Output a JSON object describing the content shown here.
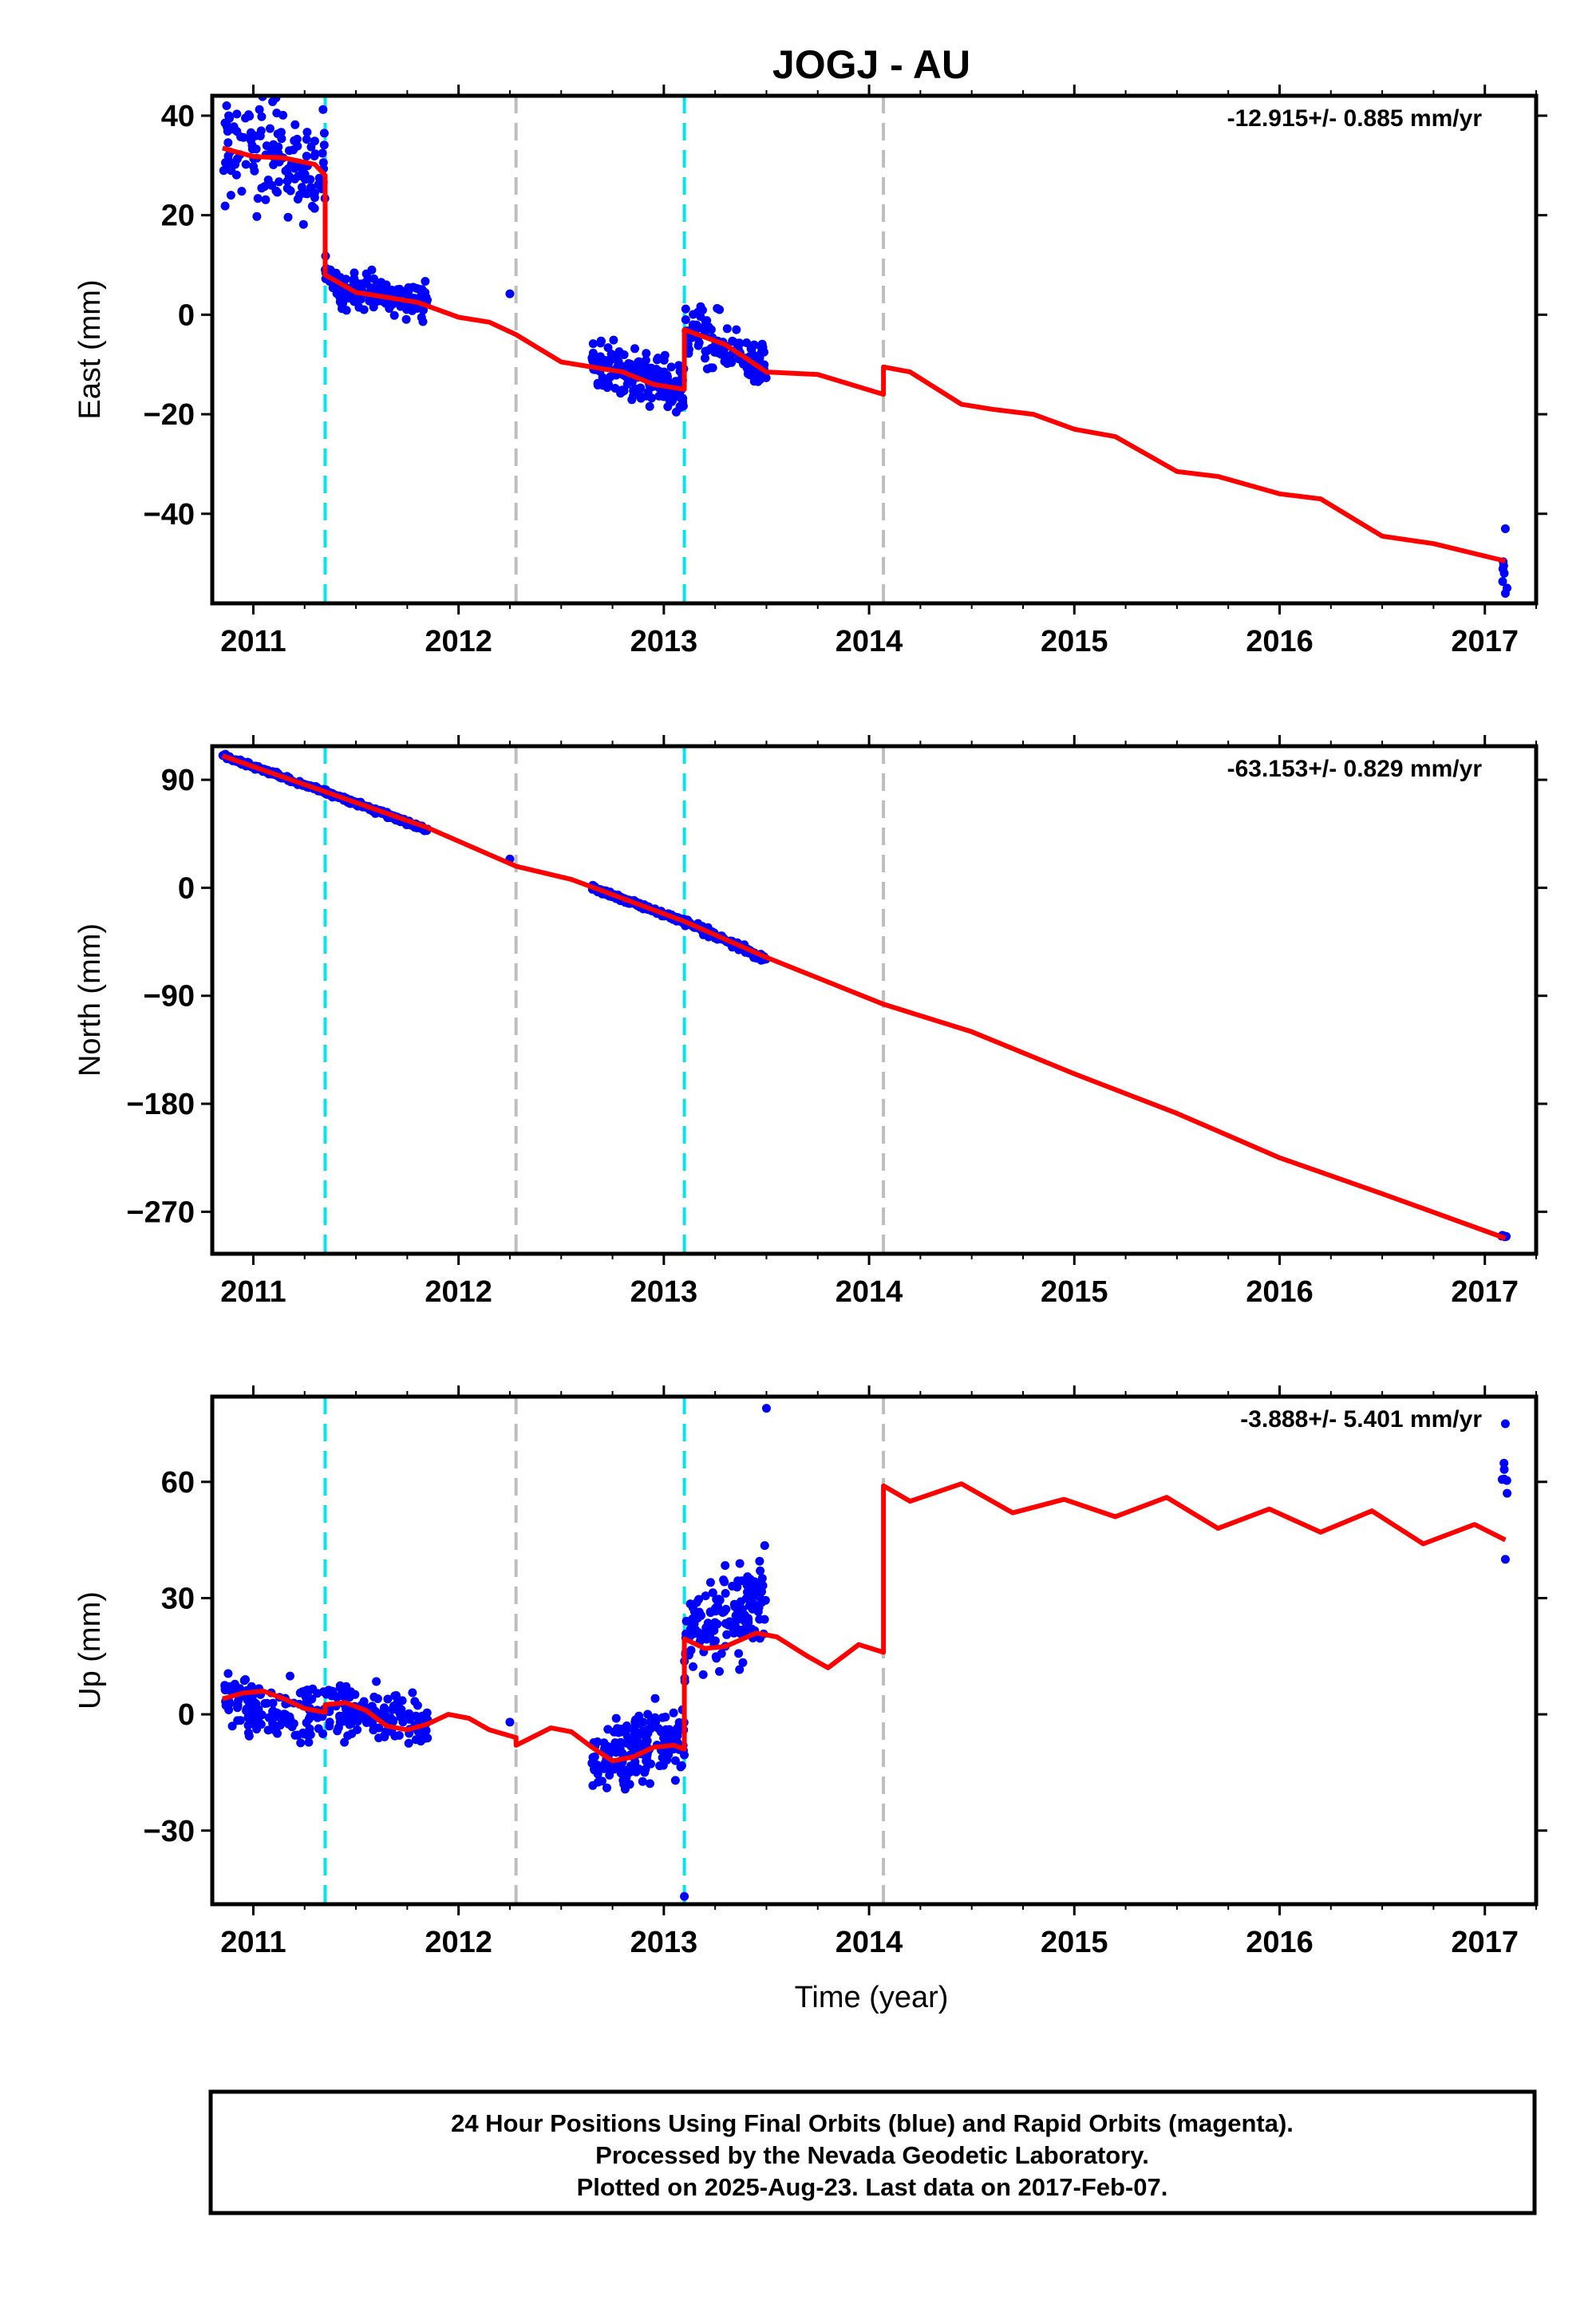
{
  "title": "JOGJ - AU",
  "x_axis_label": "Time (year)",
  "footer": {
    "line1": "24 Hour Positions Using Final Orbits (blue) and Rapid Orbits (magenta).",
    "line2": "Processed by the Nevada Geodetic Laboratory.",
    "line3": "Plotted on 2025-Aug-23. Last data on 2017-Feb-07."
  },
  "colors": {
    "data": "#0000ff",
    "model": "#ff0000",
    "equipment_change": "#00e5ee",
    "other_event": "#bebebe",
    "frame": "#000000"
  },
  "chart_data": [
    {
      "type": "scatter",
      "name": "east",
      "ylabel": "East (mm)",
      "rate_label": "-12.915+/- 0.885 mm/yr",
      "xlim": [
        2010.8,
        2017.25
      ],
      "ylim": [
        -58,
        44
      ],
      "yticks": [
        40,
        20,
        0,
        -20,
        -40
      ],
      "ytick_labels": [
        "40",
        "20",
        "0",
        "−20",
        "−40"
      ],
      "xticks": [
        2011,
        2012,
        2013,
        2014,
        2015,
        2016,
        2017
      ],
      "xtick_labels": [
        "2011",
        "2012",
        "2013",
        "2014",
        "2015",
        "2016",
        "2017"
      ],
      "cyan_lines": [
        2011.35,
        2013.1
      ],
      "gray_lines": [
        2012.28,
        2014.07
      ],
      "data_clusters": [
        {
          "x0": 2010.85,
          "x1": 2010.9,
          "y0": 30,
          "y1": 35,
          "yN": 34,
          "n": 16
        },
        {
          "x0": 2010.9,
          "x1": 2011.35,
          "y0": 33,
          "y1": 29,
          "yN": 30,
          "n": 120
        },
        {
          "x0": 2011.35,
          "x1": 2011.43,
          "y0": 10,
          "y1": 5,
          "yN": 7,
          "n": 30
        },
        {
          "x0": 2011.43,
          "x1": 2011.85,
          "y0": 5,
          "y1": 3,
          "yN": 10,
          "n": 150
        },
        {
          "x0": 2012.65,
          "x1": 2013.1,
          "y0": -10,
          "y1": -15,
          "yN": 14,
          "n": 200
        },
        {
          "x0": 2013.1,
          "x1": 2013.5,
          "y0": -3,
          "y1": -10,
          "yN": 16,
          "n": 120
        },
        {
          "x0": 2017.08,
          "x1": 2017.11,
          "y0": -50,
          "y1": -52,
          "yN": 10,
          "n": 6
        }
      ],
      "data_points": [
        {
          "x": 2010.87,
          "y": 42
        },
        {
          "x": 2010.88,
          "y": 40
        },
        {
          "x": 2012.25,
          "y": 4.2
        },
        {
          "x": 2017.1,
          "y": -43
        },
        {
          "x": 2017.1,
          "y": -56
        }
      ],
      "model_line": [
        {
          "x": 2010.85,
          "y": 33.5
        },
        {
          "x": 2011.0,
          "y": 31.8
        },
        {
          "x": 2011.15,
          "y": 31.5
        },
        {
          "x": 2011.3,
          "y": 30.2
        },
        {
          "x": 2011.35,
          "y": 28
        },
        {
          "x": 2011.35,
          "y": 8
        },
        {
          "x": 2011.5,
          "y": 4.5
        },
        {
          "x": 2011.65,
          "y": 3.5
        },
        {
          "x": 2011.8,
          "y": 2.5
        },
        {
          "x": 2012.0,
          "y": -0.5
        },
        {
          "x": 2012.15,
          "y": -1.5
        },
        {
          "x": 2012.28,
          "y": -4
        },
        {
          "x": 2012.5,
          "y": -9.5
        },
        {
          "x": 2012.8,
          "y": -11.5
        },
        {
          "x": 2012.95,
          "y": -14
        },
        {
          "x": 2013.1,
          "y": -15
        },
        {
          "x": 2013.1,
          "y": -3
        },
        {
          "x": 2013.3,
          "y": -6
        },
        {
          "x": 2013.5,
          "y": -11.5
        },
        {
          "x": 2013.75,
          "y": -12
        },
        {
          "x": 2014.07,
          "y": -16
        },
        {
          "x": 2014.07,
          "y": -10.5
        },
        {
          "x": 2014.2,
          "y": -11.5
        },
        {
          "x": 2014.45,
          "y": -18
        },
        {
          "x": 2014.6,
          "y": -19
        },
        {
          "x": 2014.8,
          "y": -20
        },
        {
          "x": 2015.0,
          "y": -23
        },
        {
          "x": 2015.2,
          "y": -24.5
        },
        {
          "x": 2015.5,
          "y": -31.5
        },
        {
          "x": 2015.7,
          "y": -32.5
        },
        {
          "x": 2016.0,
          "y": -36
        },
        {
          "x": 2016.2,
          "y": -37
        },
        {
          "x": 2016.5,
          "y": -44.5
        },
        {
          "x": 2016.75,
          "y": -46
        },
        {
          "x": 2017.1,
          "y": -49.5
        }
      ]
    },
    {
      "type": "scatter",
      "name": "north",
      "ylabel": "North (mm)",
      "rate_label": "-63.153+/- 0.829 mm/yr",
      "xlim": [
        2010.8,
        2017.25
      ],
      "ylim": [
        -305,
        118
      ],
      "yticks": [
        90,
        0,
        -90,
        -180,
        -270
      ],
      "ytick_labels": [
        "90",
        "0",
        "−90",
        "−180",
        "−270"
      ],
      "xticks": [
        2011,
        2012,
        2013,
        2014,
        2015,
        2016,
        2017
      ],
      "xtick_labels": [
        "2011",
        "2012",
        "2013",
        "2014",
        "2015",
        "2016",
        "2017"
      ],
      "cyan_lines": [
        2011.35,
        2013.1
      ],
      "gray_lines": [
        2012.28,
        2014.07
      ],
      "data_clusters": [
        {
          "x0": 2010.85,
          "x1": 2011.35,
          "y0": 110,
          "y1": 80,
          "yN": 5,
          "n": 140
        },
        {
          "x0": 2011.35,
          "x1": 2011.85,
          "y0": 80,
          "y1": 48,
          "yN": 6,
          "n": 160
        },
        {
          "x0": 2012.65,
          "x1": 2013.1,
          "y0": 0,
          "y1": -28,
          "yN": 6,
          "n": 200
        },
        {
          "x0": 2013.1,
          "x1": 2013.5,
          "y0": -28,
          "y1": -60,
          "yN": 8,
          "n": 140
        },
        {
          "x0": 2017.08,
          "x1": 2017.11,
          "y0": -290,
          "y1": -291,
          "yN": 4,
          "n": 5
        }
      ],
      "data_points": [
        {
          "x": 2012.25,
          "y": 24
        }
      ],
      "model_line": [
        {
          "x": 2010.85,
          "y": 110
        },
        {
          "x": 2011.35,
          "y": 80
        },
        {
          "x": 2011.85,
          "y": 50
        },
        {
          "x": 2012.28,
          "y": 18
        },
        {
          "x": 2012.55,
          "y": 7
        },
        {
          "x": 2013.1,
          "y": -28
        },
        {
          "x": 2013.5,
          "y": -58
        },
        {
          "x": 2014.07,
          "y": -97
        },
        {
          "x": 2014.5,
          "y": -120
        },
        {
          "x": 2015.0,
          "y": -155
        },
        {
          "x": 2015.5,
          "y": -188
        },
        {
          "x": 2016.0,
          "y": -225
        },
        {
          "x": 2016.5,
          "y": -255
        },
        {
          "x": 2017.1,
          "y": -292
        }
      ]
    },
    {
      "type": "scatter",
      "name": "up",
      "ylabel": "Up (mm)",
      "rate_label": "-3.888+/- 5.401 mm/yr",
      "xlim": [
        2010.8,
        2017.25
      ],
      "ylim": [
        -49,
        82
      ],
      "yticks": [
        60,
        30,
        0,
        -30
      ],
      "ytick_labels": [
        "60",
        "30",
        "0",
        "−30"
      ],
      "xticks": [
        2011,
        2012,
        2013,
        2014,
        2015,
        2016,
        2017
      ],
      "xtick_labels": [
        "2011",
        "2012",
        "2013",
        "2014",
        "2015",
        "2016",
        "2017"
      ],
      "cyan_lines": [
        2011.35,
        2013.1
      ],
      "gray_lines": [
        2012.28,
        2014.07
      ],
      "data_clusters": [
        {
          "x0": 2010.85,
          "x1": 2011.35,
          "y0": 4,
          "y1": 0,
          "yN": 20,
          "n": 140
        },
        {
          "x0": 2011.35,
          "x1": 2011.85,
          "y0": 2,
          "y1": -3,
          "yN": 18,
          "n": 160
        },
        {
          "x0": 2012.65,
          "x1": 2013.1,
          "y0": -12,
          "y1": -6,
          "yN": 24,
          "n": 200
        },
        {
          "x0": 2013.1,
          "x1": 2013.5,
          "y0": 20,
          "y1": 30,
          "yN": 34,
          "n": 150
        },
        {
          "x0": 2017.08,
          "x1": 2017.11,
          "y0": 62,
          "y1": 60,
          "yN": 24,
          "n": 6
        }
      ],
      "data_points": [
        {
          "x": 2012.25,
          "y": -2
        },
        {
          "x": 2013.1,
          "y": -47
        },
        {
          "x": 2013.5,
          "y": 79
        },
        {
          "x": 2017.1,
          "y": 40
        },
        {
          "x": 2017.1,
          "y": 75
        }
      ],
      "model_line": [
        {
          "x": 2010.85,
          "y": 4
        },
        {
          "x": 2010.95,
          "y": 5.5
        },
        {
          "x": 2011.05,
          "y": 6
        },
        {
          "x": 2011.15,
          "y": 4
        },
        {
          "x": 2011.25,
          "y": 1.5
        },
        {
          "x": 2011.35,
          "y": 0.5
        },
        {
          "x": 2011.35,
          "y": 2.5
        },
        {
          "x": 2011.45,
          "y": 3
        },
        {
          "x": 2011.55,
          "y": 1
        },
        {
          "x": 2011.65,
          "y": -3
        },
        {
          "x": 2011.75,
          "y": -4
        },
        {
          "x": 2011.85,
          "y": -2.5
        },
        {
          "x": 2011.95,
          "y": 0
        },
        {
          "x": 2012.05,
          "y": -1
        },
        {
          "x": 2012.15,
          "y": -4
        },
        {
          "x": 2012.28,
          "y": -6
        },
        {
          "x": 2012.28,
          "y": -8
        },
        {
          "x": 2012.45,
          "y": -3.5
        },
        {
          "x": 2012.55,
          "y": -4.5
        },
        {
          "x": 2012.65,
          "y": -8.5
        },
        {
          "x": 2012.75,
          "y": -12
        },
        {
          "x": 2012.85,
          "y": -11
        },
        {
          "x": 2012.95,
          "y": -8.5
        },
        {
          "x": 2013.05,
          "y": -8
        },
        {
          "x": 2013.1,
          "y": -9
        },
        {
          "x": 2013.1,
          "y": 19.5
        },
        {
          "x": 2013.2,
          "y": 17
        },
        {
          "x": 2013.3,
          "y": 17.5
        },
        {
          "x": 2013.45,
          "y": 21
        },
        {
          "x": 2013.55,
          "y": 20
        },
        {
          "x": 2013.7,
          "y": 15
        },
        {
          "x": 2013.8,
          "y": 12
        },
        {
          "x": 2013.95,
          "y": 18
        },
        {
          "x": 2014.07,
          "y": 16
        },
        {
          "x": 2014.07,
          "y": 59
        },
        {
          "x": 2014.2,
          "y": 55
        },
        {
          "x": 2014.45,
          "y": 59.5
        },
        {
          "x": 2014.7,
          "y": 52
        },
        {
          "x": 2014.95,
          "y": 55.5
        },
        {
          "x": 2015.2,
          "y": 51
        },
        {
          "x": 2015.45,
          "y": 56
        },
        {
          "x": 2015.7,
          "y": 48
        },
        {
          "x": 2015.95,
          "y": 53
        },
        {
          "x": 2016.2,
          "y": 47
        },
        {
          "x": 2016.45,
          "y": 52.5
        },
        {
          "x": 2016.7,
          "y": 44
        },
        {
          "x": 2016.95,
          "y": 49
        },
        {
          "x": 2017.1,
          "y": 45
        }
      ]
    }
  ]
}
